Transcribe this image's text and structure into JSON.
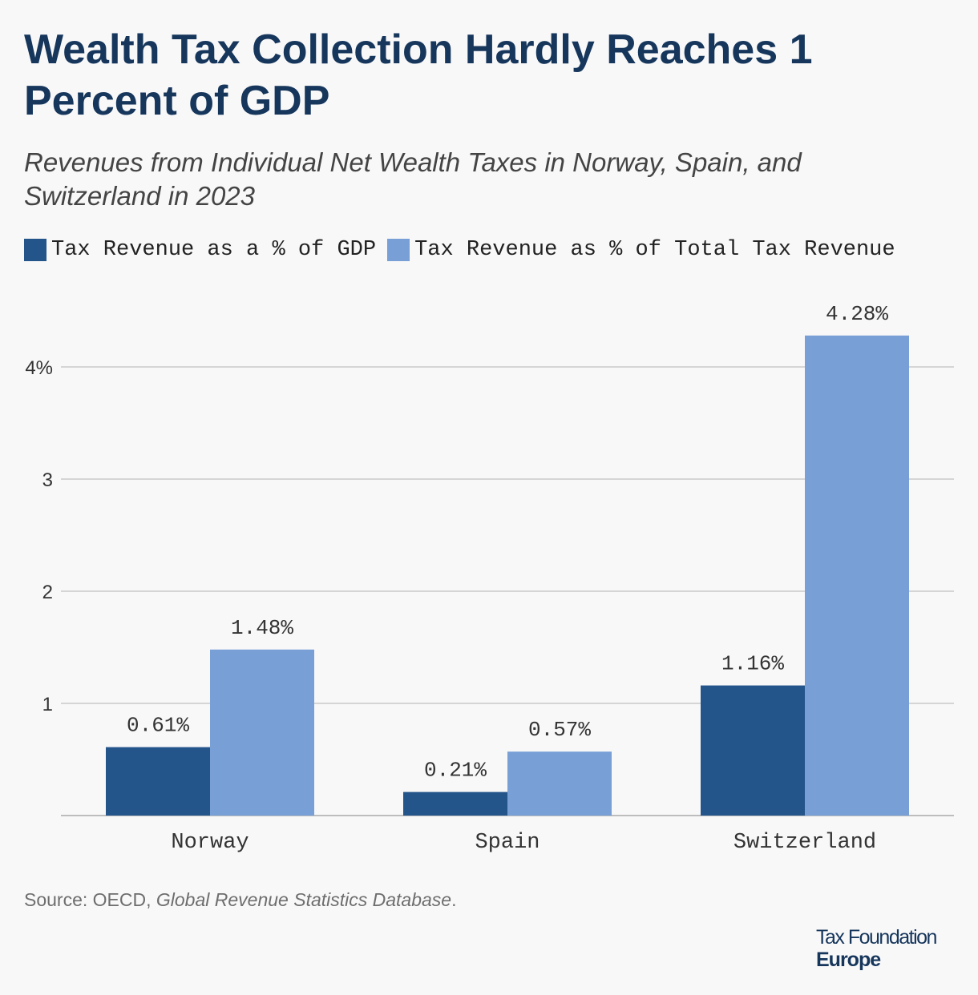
{
  "header": {
    "title": "Wealth Tax Collection Hardly Reaches 1 Percent of GDP",
    "subtitle": "Revenues from Individual Net Wealth Taxes in Norway, Spain, and Switzerland in 2023"
  },
  "colors": {
    "gdp": "#23548a",
    "total": "#789fd6",
    "title": "#16365c",
    "grid": "#d5d5d5"
  },
  "source": {
    "prefix": "Source: OECD, ",
    "name": "Global Revenue Statistics Database",
    "suffix": "."
  },
  "logo": {
    "line1": "Tax Foundation",
    "line2": "Europe"
  },
  "chart_data": {
    "type": "bar",
    "title": "Wealth Tax Collection Hardly Reaches 1 Percent of GDP",
    "subtitle": "Revenues from Individual Net Wealth Taxes in Norway, Spain, and Switzerland in 2023",
    "categories": [
      "Norway",
      "Spain",
      "Switzerland"
    ],
    "series": [
      {
        "name": "Tax Revenue as a % of GDP",
        "values": [
          0.61,
          0.21,
          1.16
        ],
        "labels": [
          "0.61%",
          "0.21%",
          "1.16%"
        ],
        "color": "#23548a"
      },
      {
        "name": "Tax Revenue as % of Total Tax Revenue",
        "values": [
          1.48,
          0.57,
          4.28
        ],
        "labels": [
          "1.48%",
          "0.57%",
          "4.28%"
        ],
        "color": "#789fd6"
      }
    ],
    "xlabel": "",
    "ylabel": "",
    "ylim": [
      0,
      4.6
    ],
    "yticks": [
      1,
      2,
      3,
      4
    ],
    "ytick_labels": [
      "1",
      "2",
      "3",
      "4%"
    ],
    "grid": true,
    "legend": "top-left"
  }
}
